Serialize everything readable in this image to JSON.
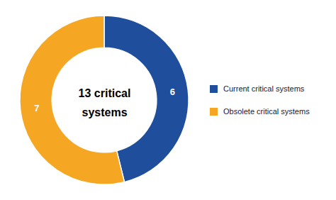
{
  "chart_data": {
    "type": "pie",
    "categories": [
      "Current critical systems",
      "Obsolete critical systems"
    ],
    "values": [
      6,
      7
    ],
    "colors": [
      "#1f4e9c",
      "#f5a623"
    ],
    "data_labels": true,
    "annotations": [
      "13 critical",
      "systems"
    ],
    "legend": "right"
  }
}
